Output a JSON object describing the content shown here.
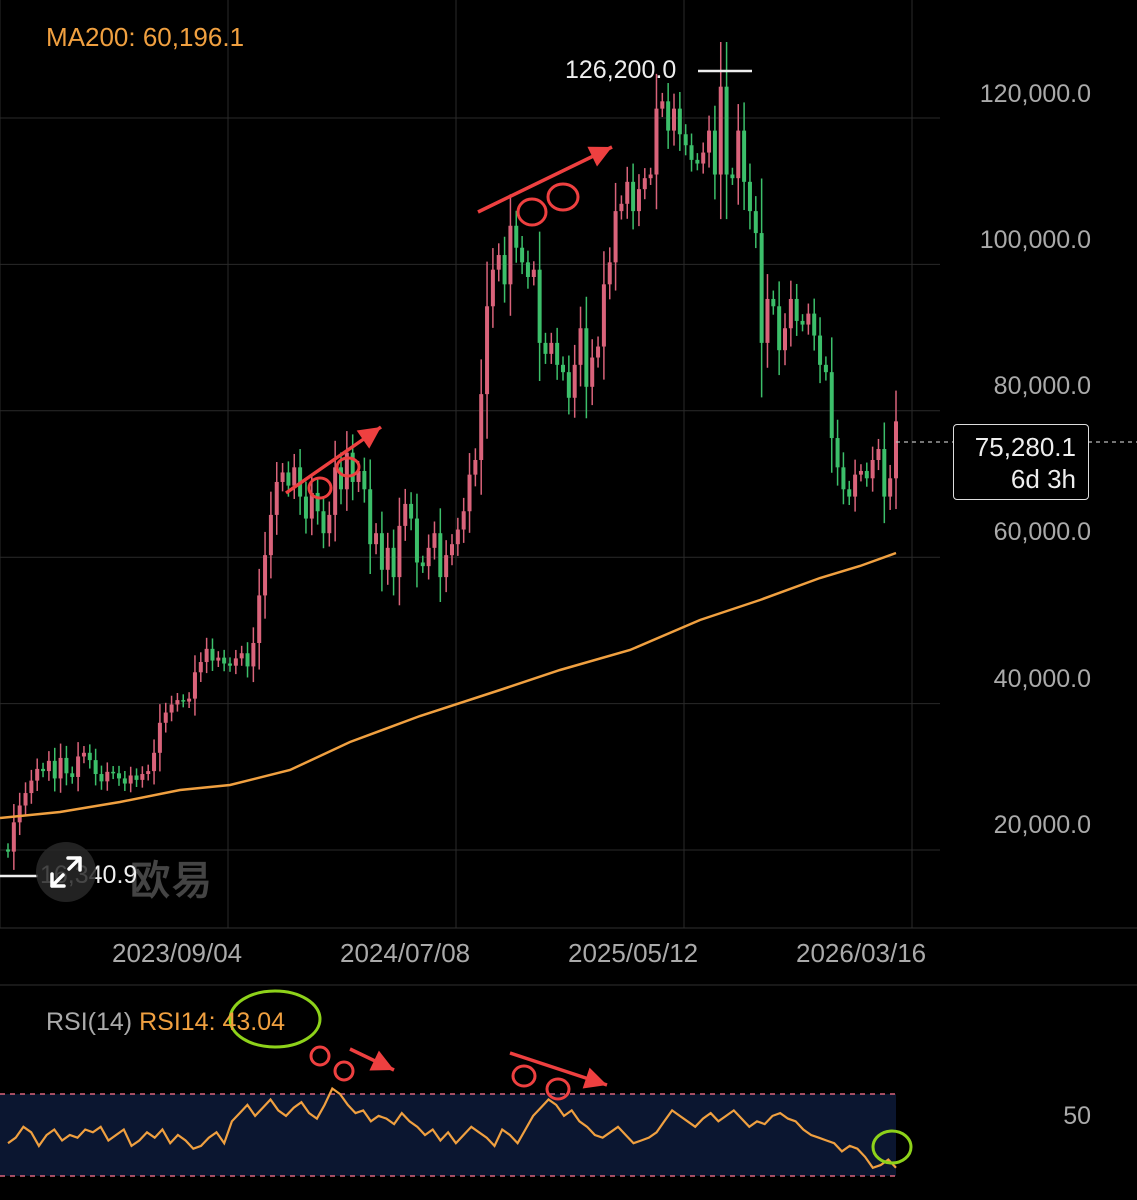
{
  "ma": {
    "label": "MA200: 60,196.1"
  },
  "price_box": {
    "price": "75,280.1",
    "countdown": "6d 3h"
  },
  "markers": {
    "high": "126,200.0",
    "low": "16,340.9"
  },
  "watermark": "欧易",
  "rsi": {
    "name": "RSI(14)",
    "value_label": "RSI14: 43.04",
    "level_label": "50"
  },
  "chart_data": [
    {
      "type": "candlestick",
      "title": "",
      "y_ticks": [
        "120,000.0",
        "100,000.0",
        "80,000.0",
        "60,000.0",
        "40,000.0",
        "20,000.0"
      ],
      "x_ticks": [
        "2023/09/04",
        "2024/07/08",
        "2025/05/12",
        "2026/03/16"
      ],
      "ylim": [
        8000,
        132000
      ],
      "highest": 126200.0,
      "lowest": 16340.9,
      "last_price": 75280.1,
      "close_series": [
        16500,
        20500,
        22800,
        24500,
        26200,
        27800,
        27500,
        28900,
        26500,
        29300,
        27200,
        26700,
        29500,
        30000,
        29000,
        27100,
        26100,
        27400,
        27200,
        26500,
        25800,
        26900,
        26300,
        27100,
        27500,
        30000,
        34100,
        35500,
        36600,
        37200,
        37000,
        37400,
        41000,
        42400,
        44200,
        42600,
        43000,
        42200,
        41900,
        42900,
        43600,
        41800,
        45000,
        51500,
        57000,
        62500,
        67000,
        68300,
        66500,
        69000,
        65000,
        62000,
        65500,
        63000,
        60000,
        62500,
        69000,
        66000,
        71000,
        67000,
        68500,
        66000,
        58500,
        60000,
        55000,
        58000,
        54000,
        61000,
        64000,
        62000,
        56000,
        55500,
        58000,
        60000,
        54000,
        57000,
        58500,
        60500,
        63000,
        68000,
        70000,
        79000,
        91000,
        96000,
        98000,
        94000,
        102000,
        99000,
        97000,
        95000,
        96000,
        86000,
        84500,
        86000,
        83000,
        82000,
        78500,
        83000,
        88000,
        80000,
        84000,
        85500,
        94000,
        97000,
        104000,
        105000,
        108000,
        104000,
        107000,
        108500,
        109000,
        118000,
        119000,
        115000,
        118000,
        114500,
        113000,
        111000,
        110500,
        112000,
        115000,
        109000,
        121000,
        109000,
        108500,
        115000,
        108000,
        104000,
        101000,
        86000,
        92000,
        91000,
        85000,
        88000,
        92000,
        89000,
        88500,
        90000,
        87000,
        83000,
        82000,
        73000,
        69000,
        66000,
        65000,
        68000,
        68500,
        67500,
        70000,
        71500,
        65000,
        67500,
        75280
      ],
      "ma200_series": [
        [
          2023.0,
          24600
        ],
        [
          2023.5,
          26800
        ],
        [
          2024.0,
          31500
        ],
        [
          2024.5,
          39200
        ],
        [
          2025.0,
          47500
        ],
        [
          2025.5,
          57000
        ],
        [
          2025.9,
          59900
        ],
        [
          2026.2,
          60196
        ]
      ]
    },
    {
      "type": "line",
      "title": "RSI(14)",
      "series": [
        {
          "name": "RSI14",
          "values": [
            52,
            54,
            58,
            56,
            51,
            55,
            57,
            53,
            55,
            54,
            57,
            56,
            58,
            53,
            55,
            57,
            51,
            53,
            56,
            54,
            57,
            52,
            55,
            53,
            50,
            51,
            54,
            56,
            52,
            60,
            63,
            66,
            62,
            65,
            68,
            64,
            62,
            65,
            67,
            63,
            61,
            66,
            72,
            70,
            66,
            63,
            64,
            60,
            62,
            61,
            59,
            63,
            60,
            58,
            55,
            57,
            53,
            56,
            52,
            55,
            58,
            56,
            54,
            51,
            57,
            55,
            52,
            57,
            62,
            65,
            68,
            66,
            62,
            64,
            60,
            58,
            55,
            54,
            56,
            58,
            55,
            52,
            53,
            54,
            56,
            60,
            64,
            62,
            60,
            58,
            61,
            63,
            60,
            62,
            64,
            61,
            58,
            60,
            59,
            62,
            63,
            61,
            60,
            57,
            55,
            54,
            53,
            52,
            49,
            51,
            50,
            47,
            43,
            44,
            46,
            43.04
          ]
        }
      ],
      "level": 50
    }
  ]
}
